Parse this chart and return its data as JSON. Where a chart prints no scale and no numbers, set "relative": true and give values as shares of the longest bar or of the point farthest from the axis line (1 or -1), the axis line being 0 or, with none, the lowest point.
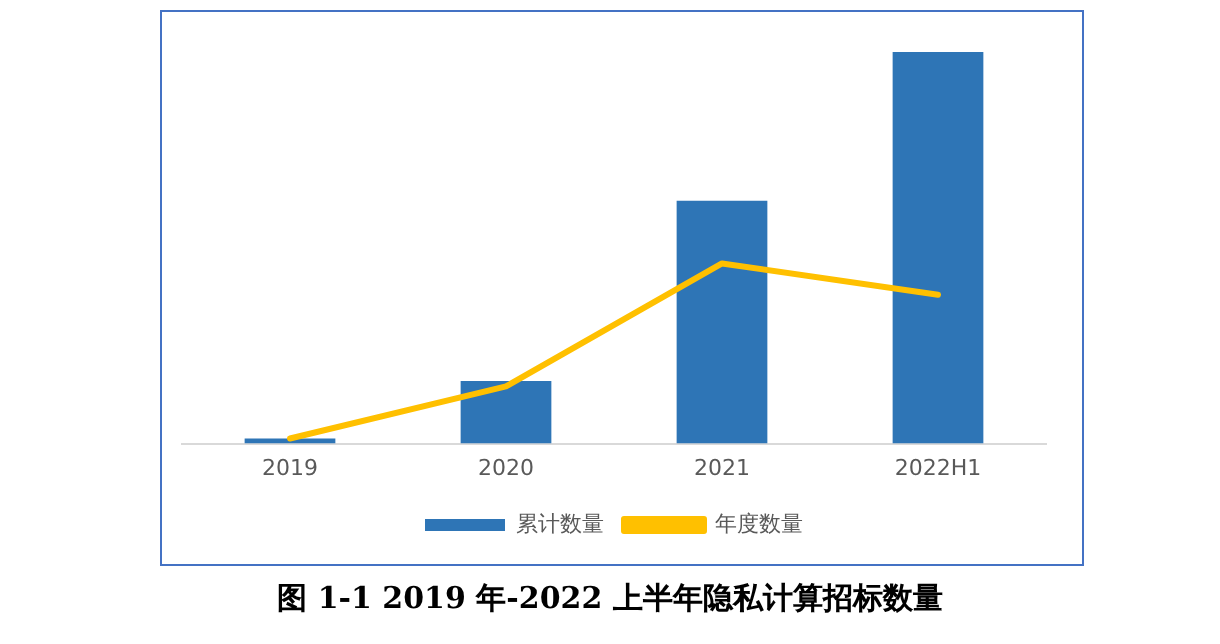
{
  "chart_data": {
    "type": "bar",
    "title": "图 1-1 2019 年-2022 上半年隐私计算招标数量",
    "categories": [
      "2019",
      "2020",
      "2021",
      "2022H1"
    ],
    "relative": true,
    "legend": "bottom",
    "grid": false,
    "series": [
      {
        "name": "累计数量",
        "color": "#2e75b6",
        "values": [
          0.013,
          0.16,
          0.62,
          1
        ]
      },
      {
        "name": "年度数量",
        "type": "line",
        "color": "#ffc000",
        "values": [
          0.013,
          0.146,
          0.46,
          0.38
        ]
      }
    ]
  }
}
